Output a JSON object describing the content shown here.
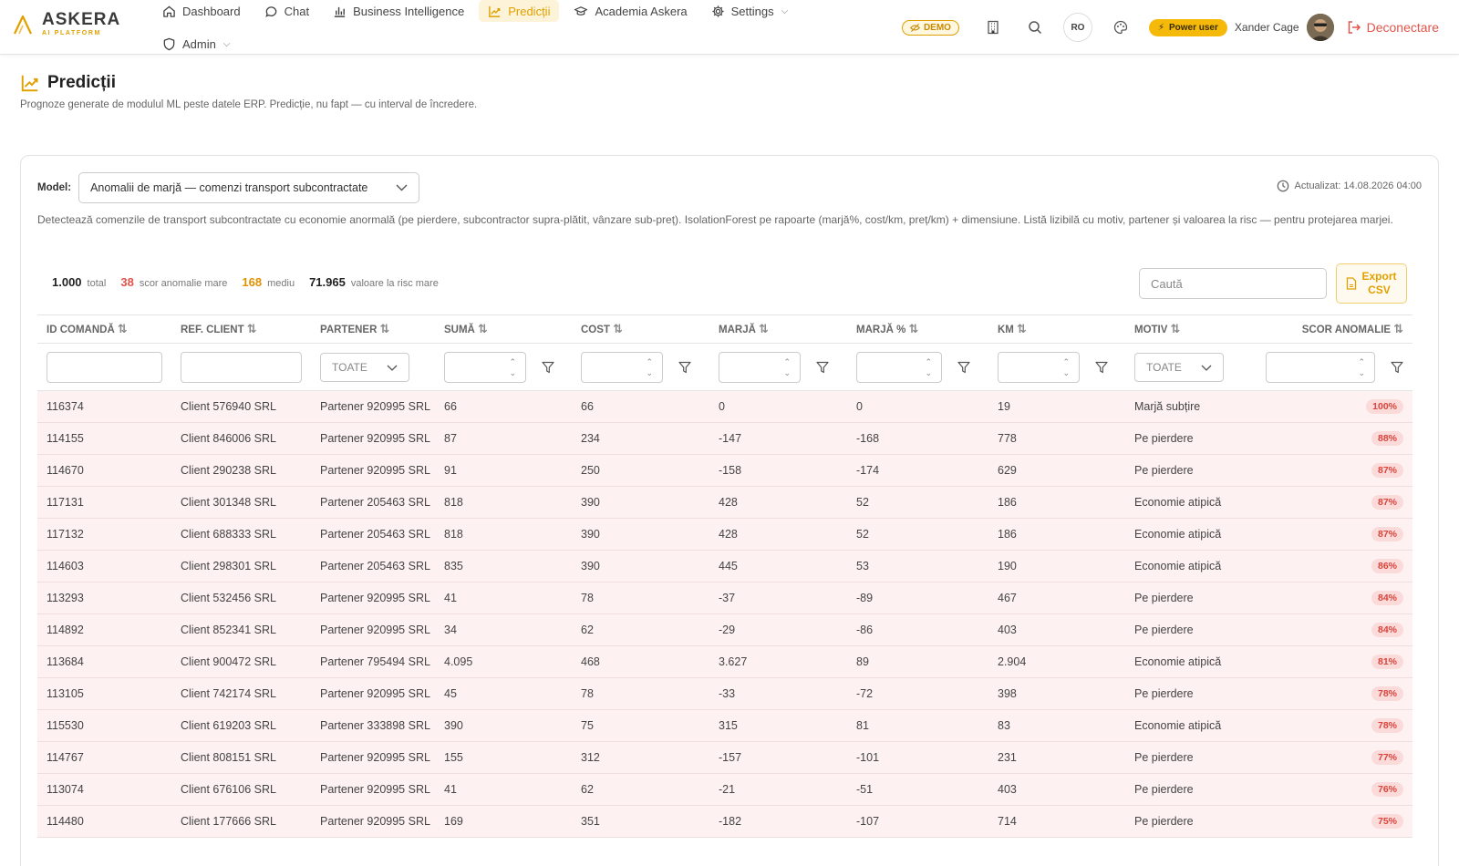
{
  "brand": {
    "name": "ASKERA",
    "sub": "AI PLATFORM"
  },
  "nav": {
    "row1": [
      {
        "label": "Dashboard",
        "icon": "home-icon",
        "active": false
      },
      {
        "label": "Chat",
        "icon": "chat-icon",
        "active": false
      },
      {
        "label": "Business Intelligence",
        "icon": "bar-chart-icon",
        "active": false
      },
      {
        "label": "Predicții",
        "icon": "trend-icon",
        "active": true
      },
      {
        "label": "Academia Askera",
        "icon": "graduation-cap-icon",
        "active": false
      },
      {
        "label": "Settings",
        "icon": "gear-icon",
        "active": false
      }
    ],
    "row2": [
      {
        "label": "Admin",
        "icon": "shield-icon",
        "active": false
      }
    ]
  },
  "header": {
    "demo": "DEMO",
    "lang": "RO",
    "power": "Power user",
    "user": "Xander Cage",
    "logout": "Deconectare"
  },
  "page": {
    "title": "Predicții",
    "desc": "Prognoze generate de modulul ML peste datele ERP. Predicție, nu fapt — cu interval de încredere."
  },
  "model": {
    "label": "Model:",
    "selected": "Anomalii de marjă — comenzi transport subcontractate",
    "updated": "Actualizat: 14.08.2026 04:00",
    "desc": "Detectează comenzile de transport subcontractate cu economie anormală (pe pierdere, subcontractor supra-plătit, vânzare sub-preț). IsolationForest pe rapoarte (marjă%, cost/km, preț/km) + dimensiune. Listă lizibilă cu motiv, partener și valoarea la risc — pentru protejarea marjei."
  },
  "stats": {
    "total_num": "1.000",
    "total_lab": "total",
    "high_num": "38",
    "high_lab": "scor anomalie mare",
    "mid_num": "168",
    "mid_lab": "mediu",
    "risk_num": "71.965",
    "risk_lab": "valoare la risc mare"
  },
  "search": {
    "placeholder": "Caută"
  },
  "export": {
    "line1": "Export",
    "line2": "CSV"
  },
  "table": {
    "columns": [
      "ID COMANDĂ",
      "REF. CLIENT",
      "PARTENER",
      "SUMĂ",
      "COST",
      "MARJĂ",
      "MARJĂ %",
      "KM",
      "MOTIV",
      "SCOR ANOMALIE"
    ],
    "filter_all": "TOATE",
    "rows": [
      [
        "116374",
        "Client 576940 SRL",
        "Partener 920995 SRL",
        "66",
        "66",
        "0",
        "0",
        "19",
        "Marjă subțire",
        "100%"
      ],
      [
        "114155",
        "Client 846006 SRL",
        "Partener 920995 SRL",
        "87",
        "234",
        "-147",
        "-168",
        "778",
        "Pe pierdere",
        "88%"
      ],
      [
        "114670",
        "Client 290238 SRL",
        "Partener 920995 SRL",
        "91",
        "250",
        "-158",
        "-174",
        "629",
        "Pe pierdere",
        "87%"
      ],
      [
        "117131",
        "Client 301348 SRL",
        "Partener 205463 SRL",
        "818",
        "390",
        "428",
        "52",
        "186",
        "Economie atipică",
        "87%"
      ],
      [
        "117132",
        "Client 688333 SRL",
        "Partener 205463 SRL",
        "818",
        "390",
        "428",
        "52",
        "186",
        "Economie atipică",
        "87%"
      ],
      [
        "114603",
        "Client 298301 SRL",
        "Partener 205463 SRL",
        "835",
        "390",
        "445",
        "53",
        "190",
        "Economie atipică",
        "86%"
      ],
      [
        "113293",
        "Client 532456 SRL",
        "Partener 920995 SRL",
        "41",
        "78",
        "-37",
        "-89",
        "467",
        "Pe pierdere",
        "84%"
      ],
      [
        "114892",
        "Client 852341 SRL",
        "Partener 920995 SRL",
        "34",
        "62",
        "-29",
        "-86",
        "403",
        "Pe pierdere",
        "84%"
      ],
      [
        "113684",
        "Client 900472 SRL",
        "Partener 795494 SRL",
        "4.095",
        "468",
        "3.627",
        "89",
        "2.904",
        "Economie atipică",
        "81%"
      ],
      [
        "113105",
        "Client 742174 SRL",
        "Partener 920995 SRL",
        "45",
        "78",
        "-33",
        "-72",
        "398",
        "Pe pierdere",
        "78%"
      ],
      [
        "115530",
        "Client 619203 SRL",
        "Partener 333898 SRL",
        "390",
        "75",
        "315",
        "81",
        "83",
        "Economie atipică",
        "78%"
      ],
      [
        "114767",
        "Client 808151 SRL",
        "Partener 920995 SRL",
        "155",
        "312",
        "-157",
        "-101",
        "231",
        "Pe pierdere",
        "77%"
      ],
      [
        "113074",
        "Client 676106 SRL",
        "Partener 920995 SRL",
        "41",
        "62",
        "-21",
        "-51",
        "403",
        "Pe pierdere",
        "76%"
      ],
      [
        "114480",
        "Client 177666 SRL",
        "Partener 920995 SRL",
        "169",
        "351",
        "-182",
        "-107",
        "714",
        "Pe pierdere",
        "75%"
      ]
    ]
  }
}
